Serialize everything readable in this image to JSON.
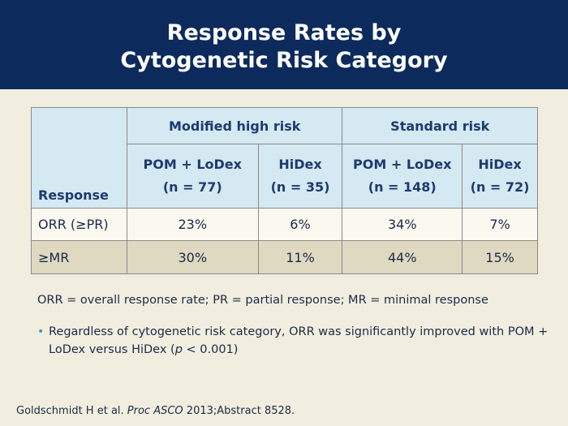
{
  "header": {
    "title_line1": "Response Rates by",
    "title_line2": "Cytogenetic Risk Category"
  },
  "table": {
    "response_header": "Response",
    "groups": [
      {
        "label": "Modified high risk"
      },
      {
        "label": "Standard risk"
      }
    ],
    "columns": [
      {
        "line1": "POM + LoDex",
        "line2": "(n = 77)"
      },
      {
        "line1": "HiDex",
        "line2": "(n = 35)"
      },
      {
        "line1": "POM + LoDex",
        "line2": "(n = 148)"
      },
      {
        "line1": "HiDex",
        "line2": "(n = 72)"
      }
    ],
    "rows": [
      {
        "label": "ORR (≥PR)",
        "values": [
          "23%",
          "6%",
          "34%",
          "7%"
        ]
      },
      {
        "label": "≥MR",
        "values": [
          "30%",
          "11%",
          "44%",
          "15%"
        ]
      }
    ]
  },
  "abbreviations": "ORR = overall response rate; PR = partial response; MR = minimal response",
  "bullet": {
    "before": "Regardless of cytogenetic risk category, ORR was significantly improved with POM + LoDex versus HiDex (",
    "p": "p",
    "after": " < 0.001)"
  },
  "citation": {
    "authors": "Goldschmidt H et al. ",
    "journal": "Proc ASCO",
    "rest": " 2013;Abstract 8528."
  },
  "colors": {
    "header_bg": "#0d2a5c",
    "page_bg": "#f2eedf",
    "table_header_bg": "#d4e9f2",
    "row_alt_bg": "#e0d9c1",
    "bullet_accent": "#3a9bb0"
  }
}
